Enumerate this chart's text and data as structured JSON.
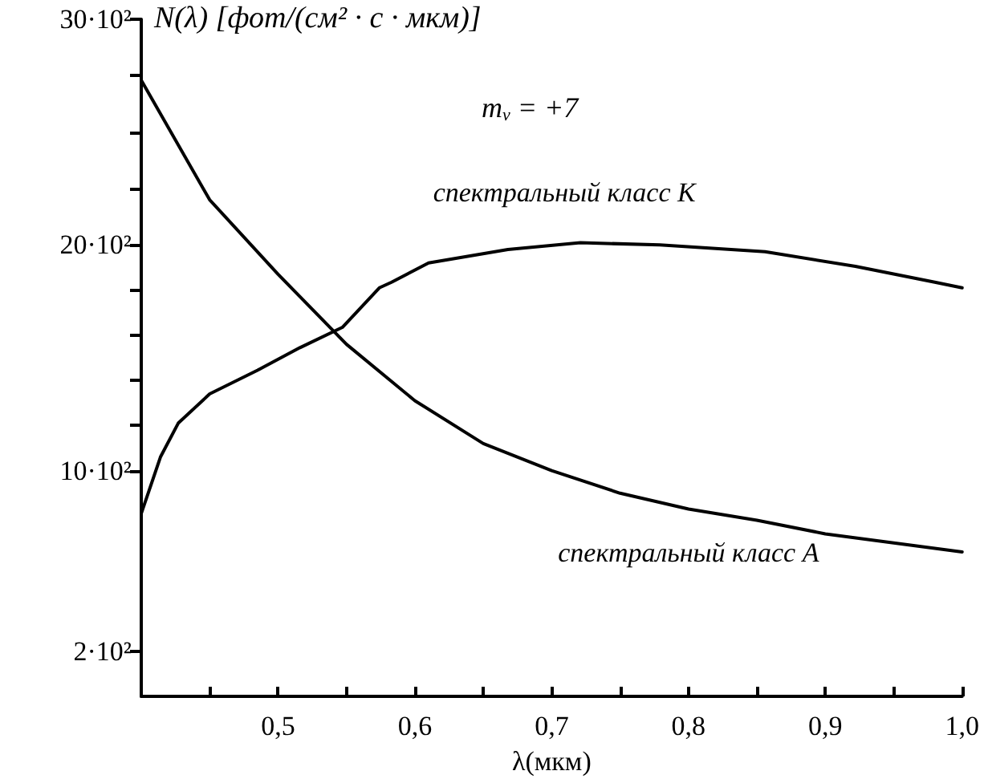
{
  "chart_data": {
    "type": "line",
    "ylabel": "N(λ) [фот/(см² · с · мкм)]",
    "xlabel": "λ(мкм)",
    "annotations": [
      "m$_{ν}$ = +7"
    ],
    "xlim": [
      0.4,
      1.0
    ],
    "xticks": [
      {
        "value": 0.45,
        "label": null
      },
      {
        "value": 0.5,
        "label": "0,5"
      },
      {
        "value": 0.55,
        "label": null
      },
      {
        "value": 0.6,
        "label": "0,6"
      },
      {
        "value": 0.65,
        "label": null
      },
      {
        "value": 0.7,
        "label": "0,7"
      },
      {
        "value": 0.75,
        "label": null
      },
      {
        "value": 0.8,
        "label": "0,8"
      },
      {
        "value": 0.85,
        "label": null
      },
      {
        "value": 0.9,
        "label": "0,9"
      },
      {
        "value": 0.95,
        "label": null
      },
      {
        "value": 1.0,
        "label": "1,0"
      }
    ],
    "ylim": [
      0,
      3000
    ],
    "yticks": [
      {
        "value": 200,
        "label": "2·10²"
      },
      {
        "value": 1000,
        "label": "10·10²"
      },
      {
        "value": 1200,
        "label": null
      },
      {
        "value": 1400,
        "label": null
      },
      {
        "value": 1600,
        "label": null
      },
      {
        "value": 1800,
        "label": null
      },
      {
        "value": 2000,
        "label": "20·10²"
      },
      {
        "value": 2250,
        "label": null
      },
      {
        "value": 2500,
        "label": null
      },
      {
        "value": 2750,
        "label": null
      },
      {
        "value": 3000,
        "label": "30·10²"
      }
    ],
    "grid": false,
    "legend": false,
    "marker": "none",
    "line_style": "solid",
    "series": [
      {
        "name": "спектральный класс K",
        "color": "#000000",
        "x": [
          0.4,
          0.414,
          0.427,
          0.45,
          0.485,
          0.516,
          0.547,
          0.574,
          0.583,
          0.61,
          0.668,
          0.721,
          0.779,
          0.856,
          0.922,
          0.98,
          1.0
        ],
        "values": [
          810,
          1060,
          1210,
          1340,
          1445,
          1545,
          1635,
          1810,
          1835,
          1920,
          1980,
          2010,
          2000,
          1970,
          1905,
          1835,
          1810
        ]
      },
      {
        "name": "спектральный класс A",
        "color": "#000000",
        "x": [
          0.4,
          0.45,
          0.5,
          0.55,
          0.6,
          0.65,
          0.7,
          0.75,
          0.8,
          0.85,
          0.9,
          0.95,
          1.0
        ],
        "values": [
          2730,
          2200,
          1870,
          1560,
          1310,
          1120,
          1000,
          900,
          830,
          780,
          720,
          680,
          640
        ]
      }
    ]
  }
}
